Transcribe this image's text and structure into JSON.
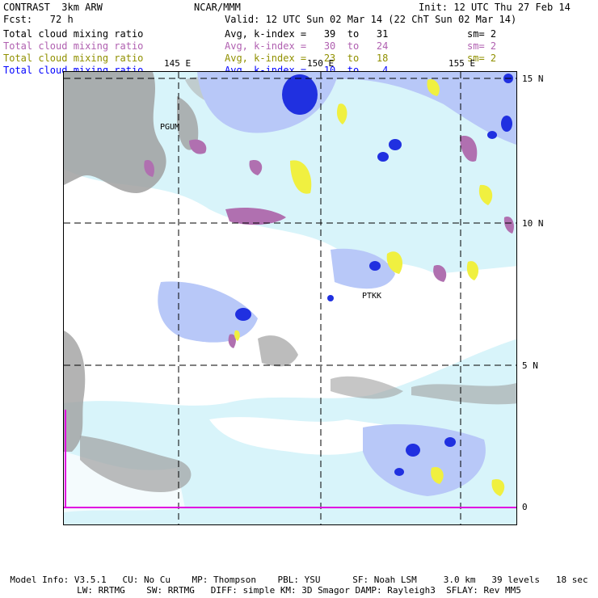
{
  "header": {
    "model": "CONTRAST  3km ARW",
    "org": "NCAR/MMM",
    "init": "Init: 12 UTC Thu 27 Feb 14",
    "fcst": "Fcst:   72 h",
    "valid": "Valid: 12 UTC Sun 02 Mar 14 (22 ChT Sun 02 Mar 14)"
  },
  "legend": [
    {
      "field": "Total cloud mixing ratio",
      "range": "Avg, k-index =   39  to   31",
      "sm": "sm= 2",
      "color": "#000000"
    },
    {
      "field": "Total cloud mixing ratio",
      "range": "Avg, k-index =   30  to   24",
      "sm": "sm= 2",
      "color": "#b060b0"
    },
    {
      "field": "Total cloud mixing ratio",
      "range": "Avg, k-index =   23  to   18",
      "sm": "sm= 2",
      "color": "#909000"
    },
    {
      "field": "Total cloud mixing ratio",
      "range": "Avg, k-index =   10  to    4",
      "sm": "",
      "color": "#0000ff"
    }
  ],
  "map": {
    "lon_labels": [
      "145 E",
      "150 E",
      "155 E"
    ],
    "lat_labels": [
      "15 N",
      "10 N",
      "5 N",
      "0"
    ],
    "stations": [
      "PGUM",
      "PTKK"
    ],
    "colors": {
      "low_gray": "#a0a0a0",
      "light_blue": "#d8f4fa",
      "mid_blue": "#b8c8f8",
      "deep_blue": "#2030e0",
      "purple": "#b070b0",
      "yellow": "#f0f040",
      "equator": "#e000e0"
    }
  },
  "footer": {
    "line1": "Model Info: V3.5.1   CU: No Cu    MP: Thompson    PBL: YSU      SF: Noah LSM     3.0 km   39 levels   18 sec",
    "line2": "LW: RRTMG    SW: RRTMG   DIFF: simple KM: 3D Smagor DAMP: Rayleigh3  SFLAY: Rev MM5"
  }
}
